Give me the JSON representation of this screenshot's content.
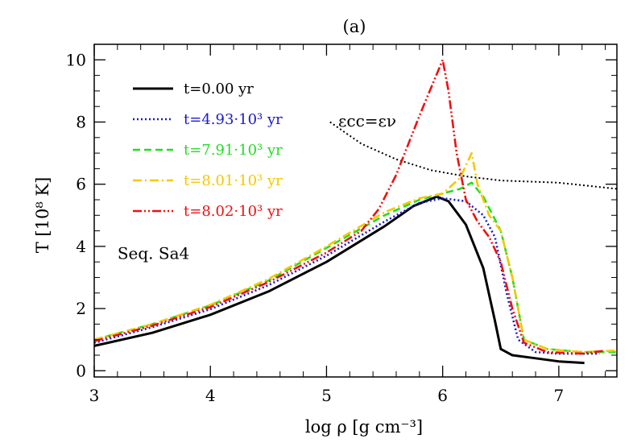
{
  "chart_data": {
    "type": "line",
    "title": "(a)",
    "xlabel": "log ρ [g cm⁻³]",
    "ylabel": "T [10⁸ K]",
    "xlim": [
      3,
      7.5
    ],
    "ylim": [
      -0.2,
      10.5
    ],
    "x_ticks": [
      3,
      4,
      5,
      6,
      7
    ],
    "y_ticks": [
      0,
      2,
      4,
      6,
      8,
      10
    ],
    "x_tick_labels": [
      "3",
      "4",
      "5",
      "6",
      "7"
    ],
    "y_tick_labels": [
      "0",
      "2",
      "4",
      "6",
      "8",
      "10"
    ],
    "grid": false,
    "legend_position": "upper-left",
    "annotation": {
      "text": "Seq. Sa4",
      "x": 3.2,
      "y": 3.6
    },
    "reference_line": {
      "label": "εcc=εν",
      "color": "#000000",
      "style": "dotted",
      "points": [
        [
          5.03,
          8.0
        ],
        [
          5.3,
          7.3
        ],
        [
          5.6,
          6.8
        ],
        [
          5.9,
          6.45
        ],
        [
          6.2,
          6.25
        ],
        [
          6.5,
          6.12
        ],
        [
          7.0,
          6.05
        ],
        [
          7.5,
          5.85
        ]
      ]
    },
    "series": [
      {
        "name": "t=0.00 yr",
        "color": "#000000",
        "style": "solid",
        "points": [
          [
            3,
            0.8
          ],
          [
            3.5,
            1.22
          ],
          [
            4,
            1.8
          ],
          [
            4.5,
            2.55
          ],
          [
            5,
            3.5
          ],
          [
            5.5,
            4.65
          ],
          [
            5.75,
            5.3
          ],
          [
            5.95,
            5.6
          ],
          [
            6.05,
            5.45
          ],
          [
            6.2,
            4.7
          ],
          [
            6.35,
            3.3
          ],
          [
            6.45,
            1.6
          ],
          [
            6.5,
            0.7
          ],
          [
            6.6,
            0.5
          ],
          [
            6.8,
            0.4
          ],
          [
            7.0,
            0.3
          ],
          [
            7.22,
            0.25
          ]
        ]
      },
      {
        "name": "t=4.93·10³ yr",
        "color": "#1a1acc",
        "style": "dotted",
        "points": [
          [
            3,
            0.9
          ],
          [
            3.5,
            1.4
          ],
          [
            4,
            1.98
          ],
          [
            4.5,
            2.75
          ],
          [
            5,
            3.7
          ],
          [
            5.5,
            4.8
          ],
          [
            5.8,
            5.4
          ],
          [
            6.0,
            5.55
          ],
          [
            6.2,
            5.45
          ],
          [
            6.35,
            5.0
          ],
          [
            6.45,
            4.3
          ],
          [
            6.55,
            2.5
          ],
          [
            6.65,
            1.0
          ],
          [
            6.8,
            0.6
          ],
          [
            7.0,
            0.55
          ],
          [
            7.35,
            0.55
          ]
        ]
      },
      {
        "name": "t=7.91·10³ yr",
        "color": "#22dd22",
        "style": "dashed",
        "points": [
          [
            3,
            1.0
          ],
          [
            3.5,
            1.5
          ],
          [
            4,
            2.1
          ],
          [
            4.5,
            2.9
          ],
          [
            5,
            3.95
          ],
          [
            5.5,
            5.0
          ],
          [
            5.8,
            5.5
          ],
          [
            6.0,
            5.7
          ],
          [
            6.15,
            5.85
          ],
          [
            6.25,
            6.05
          ],
          [
            6.35,
            5.6
          ],
          [
            6.5,
            4.5
          ],
          [
            6.6,
            3.0
          ],
          [
            6.7,
            1.0
          ],
          [
            6.9,
            0.7
          ],
          [
            7.2,
            0.6
          ],
          [
            7.5,
            0.6
          ]
        ]
      },
      {
        "name": "t=8.01·10³ yr",
        "color": "#f5c800",
        "style": "dashdot",
        "points": [
          [
            3,
            1.0
          ],
          [
            3.5,
            1.5
          ],
          [
            4,
            2.12
          ],
          [
            4.5,
            2.95
          ],
          [
            5,
            4.0
          ],
          [
            5.5,
            5.1
          ],
          [
            5.8,
            5.55
          ],
          [
            6.0,
            5.7
          ],
          [
            6.15,
            6.2
          ],
          [
            6.25,
            7.0
          ],
          [
            6.3,
            6.0
          ],
          [
            6.4,
            5.0
          ],
          [
            6.5,
            4.5
          ],
          [
            6.6,
            3.0
          ],
          [
            6.7,
            1.0
          ],
          [
            6.9,
            0.7
          ],
          [
            7.2,
            0.6
          ],
          [
            7.5,
            0.65
          ]
        ]
      },
      {
        "name": "t=8.02·10³ yr",
        "color": "#ee1111",
        "style": "dashdotdot",
        "points": [
          [
            3,
            0.95
          ],
          [
            3.5,
            1.45
          ],
          [
            4,
            2.05
          ],
          [
            4.5,
            2.85
          ],
          [
            5,
            3.8
          ],
          [
            5.3,
            4.5
          ],
          [
            5.45,
            5.2
          ],
          [
            5.6,
            6.3
          ],
          [
            5.8,
            8.2
          ],
          [
            6.0,
            10.0
          ],
          [
            6.05,
            9.0
          ],
          [
            6.12,
            7.0
          ],
          [
            6.2,
            5.5
          ],
          [
            6.3,
            4.8
          ],
          [
            6.4,
            4.3
          ],
          [
            6.5,
            3.5
          ],
          [
            6.6,
            2.0
          ],
          [
            6.7,
            0.9
          ],
          [
            6.9,
            0.6
          ],
          [
            7.2,
            0.55
          ],
          [
            7.4,
            0.65
          ]
        ]
      }
    ]
  }
}
